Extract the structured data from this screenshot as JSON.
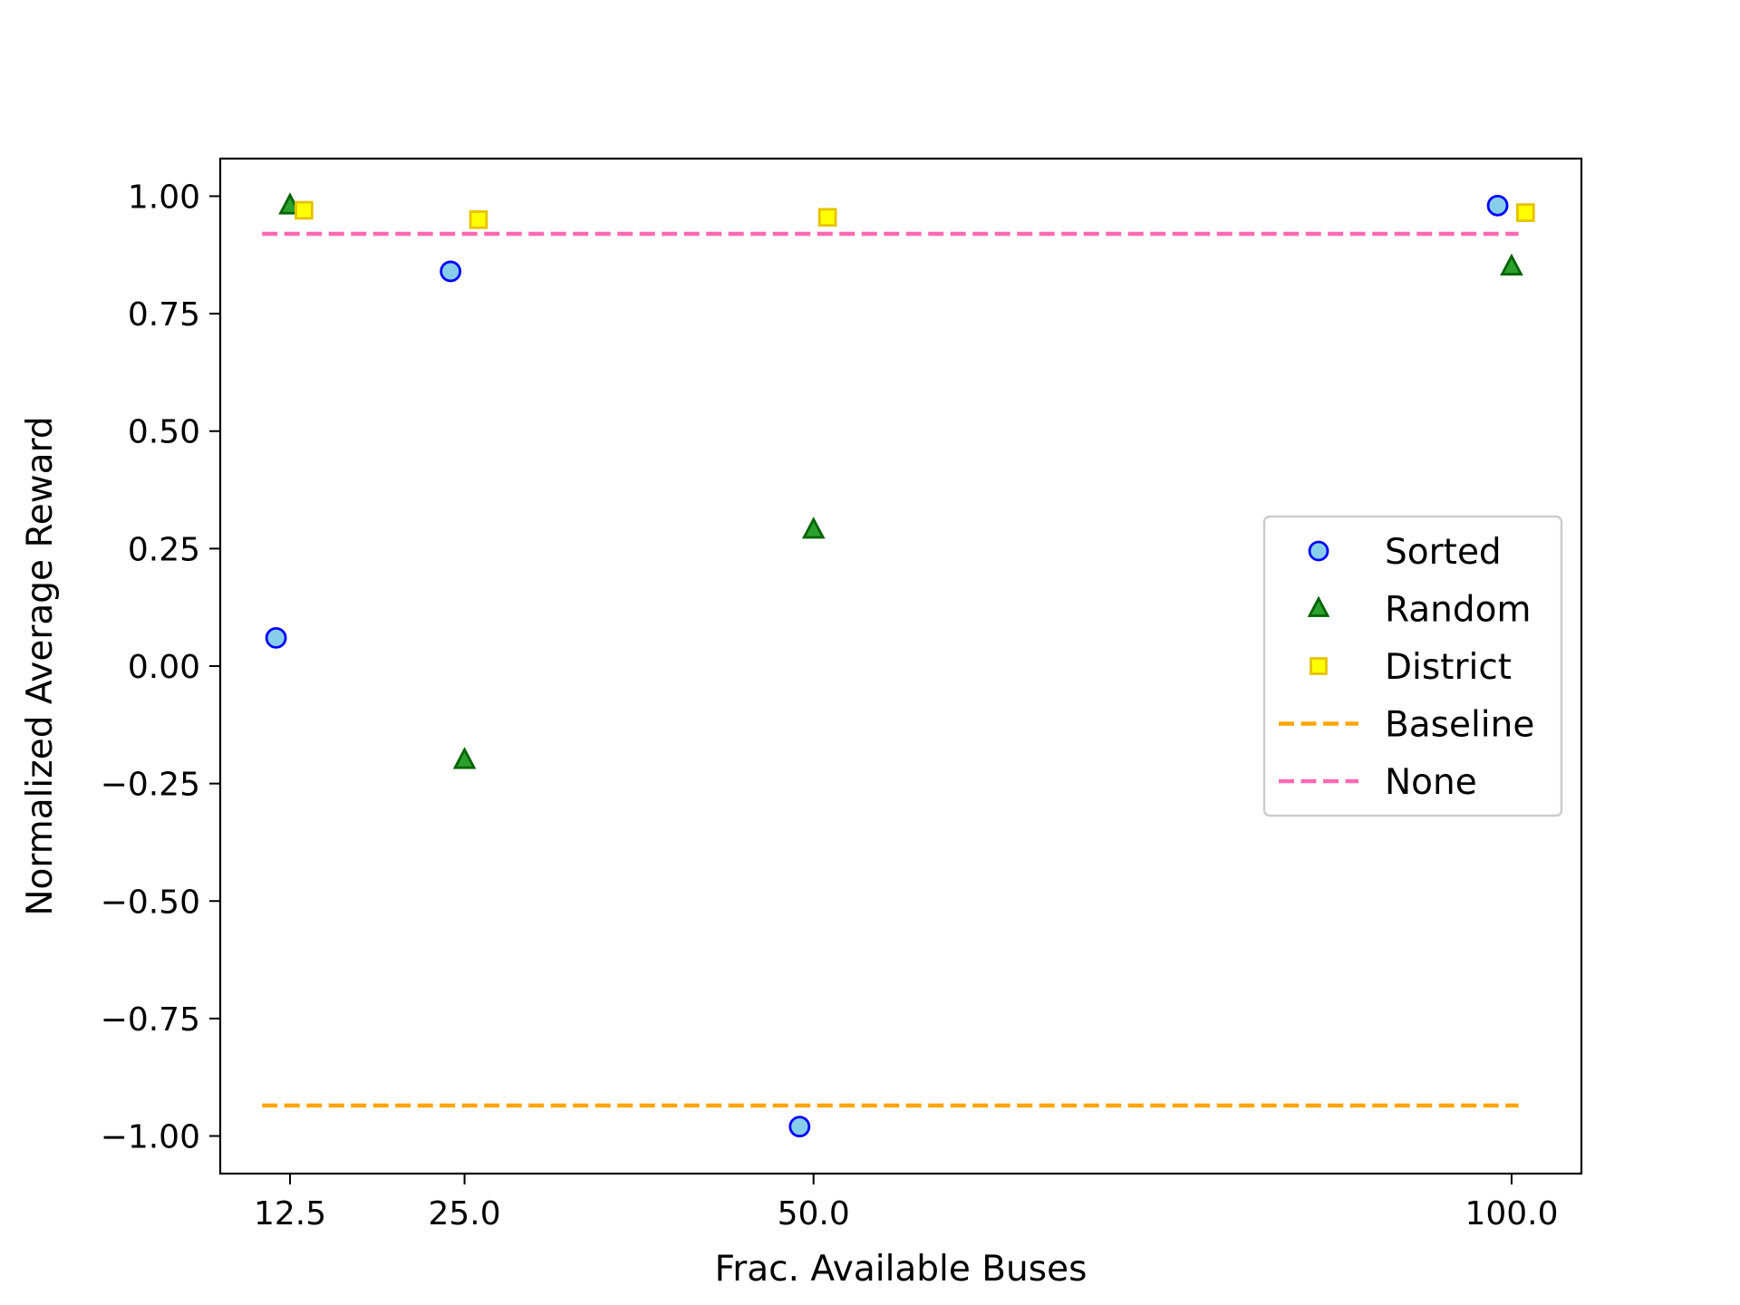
{
  "chart_data": {
    "type": "scatter",
    "xlabel": "Frac. Available Buses",
    "ylabel": "Normalized Average Reward",
    "xlim": [
      7.5,
      105.0
    ],
    "ylim": [
      -1.08,
      1.08
    ],
    "x_ticks": [
      12.5,
      25.0,
      50.0,
      100.0
    ],
    "x_tick_labels": [
      "12.5",
      "25.0",
      "50.0",
      "100.0"
    ],
    "y_ticks": [
      1.0,
      0.75,
      0.5,
      0.25,
      0.0,
      -0.25,
      -0.5,
      -0.75,
      -1.0
    ],
    "y_tick_labels": [
      "1.00",
      "0.75",
      "0.50",
      "0.25",
      "0.00",
      "−0.25",
      "−0.50",
      "−0.75",
      "−1.00"
    ],
    "grid": false,
    "legend_position": "center-right",
    "series": [
      {
        "name": "Sorted",
        "marker": "circle",
        "color": "#87CEEB",
        "edge": "#0000FF",
        "x": [
          11.5,
          24.0,
          49.0,
          99.0
        ],
        "y": [
          0.06,
          0.84,
          -0.98,
          0.98
        ]
      },
      {
        "name": "Random",
        "marker": "triangle",
        "color": "#2CA02C",
        "edge": "#006400",
        "x": [
          12.5,
          25.0,
          50.0,
          100.0
        ],
        "y": [
          0.98,
          -0.2,
          0.29,
          0.85
        ]
      },
      {
        "name": "District",
        "marker": "square",
        "color": "#FFFF00",
        "edge": "#E6C200",
        "x": [
          13.5,
          26.0,
          51.0,
          101.0
        ],
        "y": [
          0.97,
          0.95,
          0.955,
          0.965
        ]
      }
    ],
    "lines": [
      {
        "name": "Baseline",
        "style": "dashed",
        "color": "#FFA500",
        "x": [
          10.5,
          100.5
        ],
        "y": [
          -0.935,
          -0.935
        ]
      },
      {
        "name": "None",
        "style": "dashed",
        "color": "#FF69B4",
        "x": [
          10.5,
          100.5
        ],
        "y": [
          0.92,
          0.92
        ]
      }
    ]
  }
}
